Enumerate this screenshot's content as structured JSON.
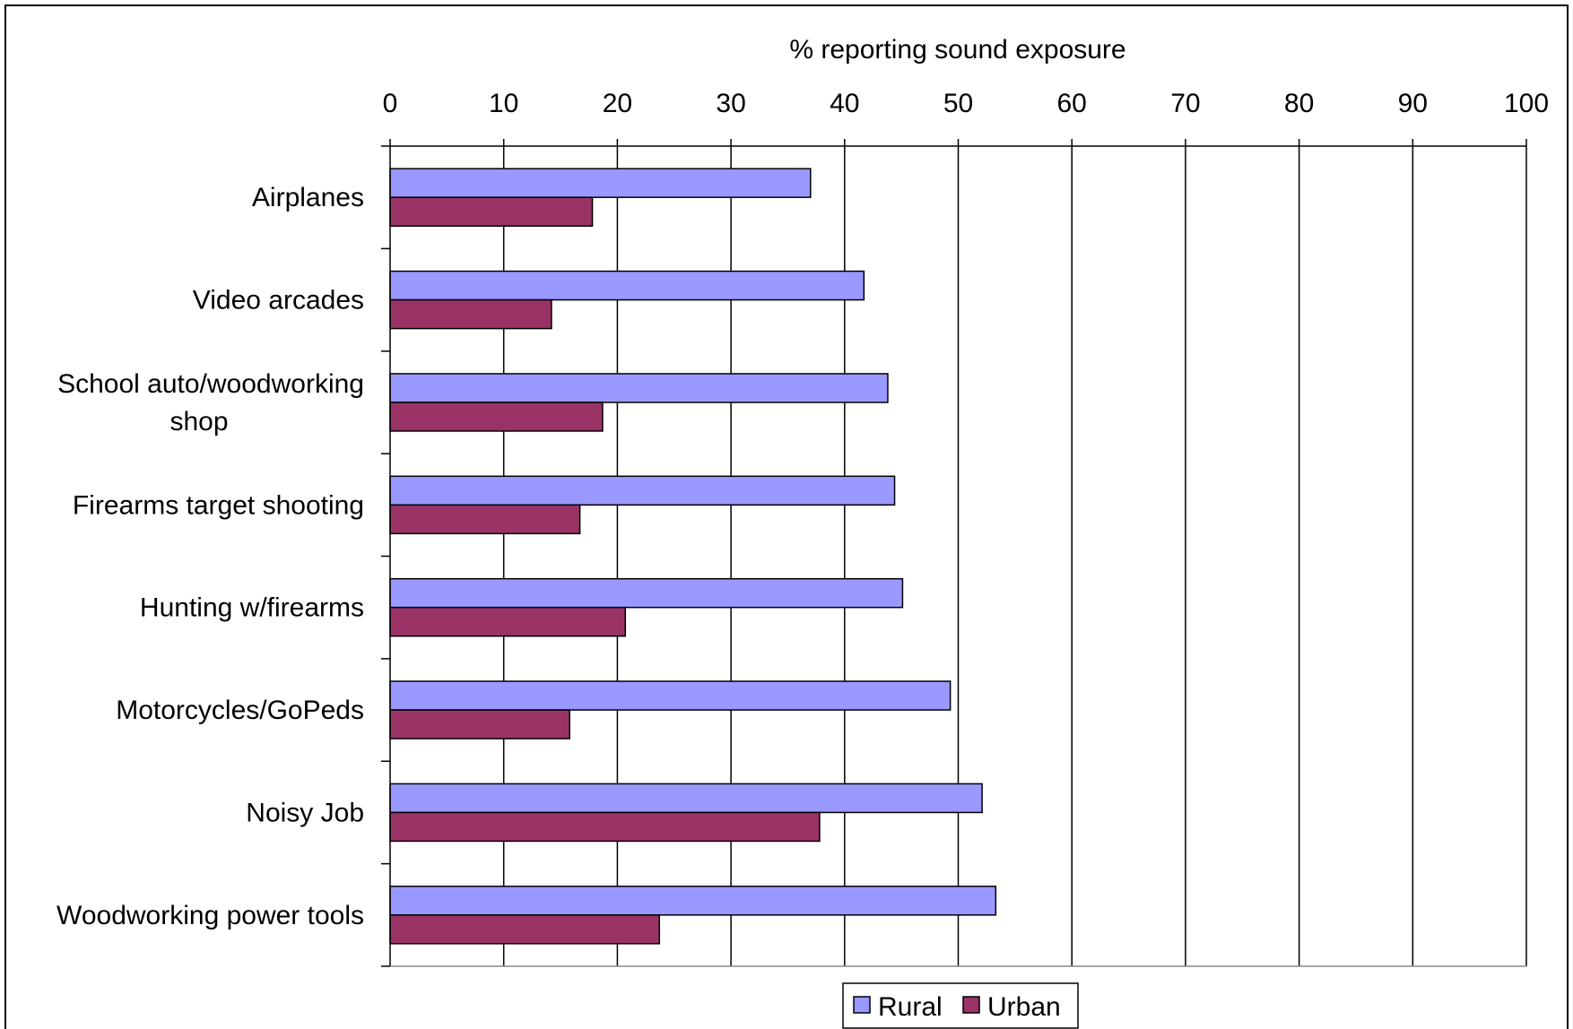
{
  "chart_data": {
    "type": "bar",
    "orientation": "horizontal",
    "xlabel": "% reporting sound exposure",
    "xlim": [
      0,
      100
    ],
    "x_ticks": [
      0,
      10,
      20,
      30,
      40,
      50,
      60,
      70,
      80,
      90,
      100
    ],
    "grid": "vertical major gridlines",
    "x_axis_position": "top",
    "legend_position": "bottom-center",
    "categories": [
      [
        "Airplanes"
      ],
      [
        "Video arcades"
      ],
      [
        "School auto/woodworking",
        "shop"
      ],
      [
        "Firearms target shooting"
      ],
      [
        "Hunting w/firearms"
      ],
      [
        "Motorcycles/GoPeds"
      ],
      [
        "Noisy Job"
      ],
      [
        "Woodworking power tools"
      ]
    ],
    "series": [
      {
        "name": "Rural",
        "color": "#9999ff",
        "values": [
          37.0,
          41.7,
          43.8,
          44.4,
          45.1,
          49.3,
          52.1,
          53.3
        ]
      },
      {
        "name": "Urban",
        "color": "#993366",
        "values": [
          17.8,
          14.2,
          18.7,
          16.7,
          20.7,
          15.8,
          37.8,
          23.7
        ]
      }
    ]
  }
}
